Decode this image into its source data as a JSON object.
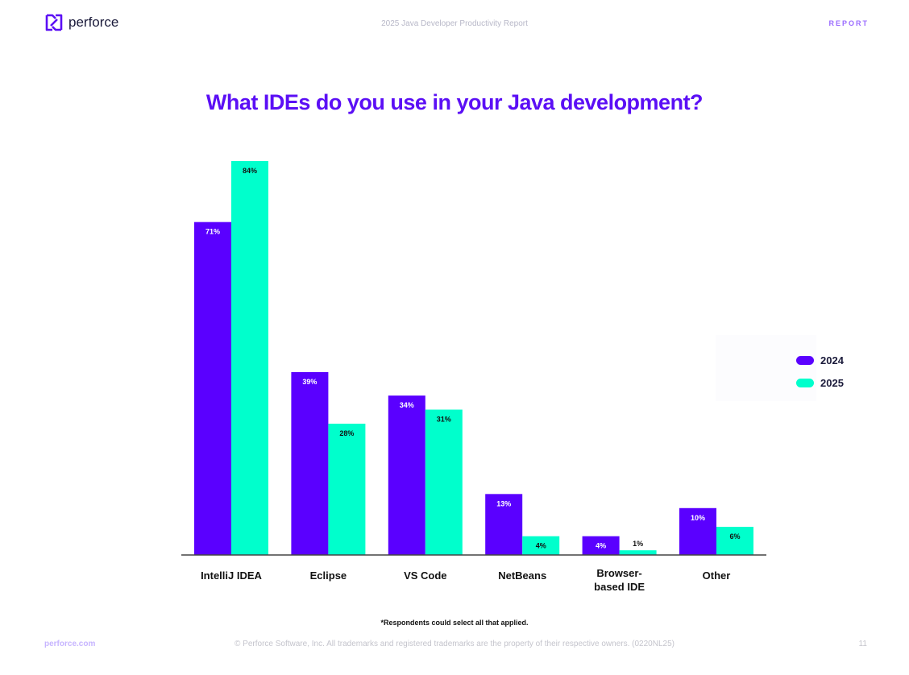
{
  "header": {
    "brand": "perforce",
    "doc_title": "2025 Java Developer Productivity Report",
    "section": "REPORT"
  },
  "colors": {
    "2024": "#5a00ff",
    "2025": "#00ffcc",
    "accent": "#5b0ff5"
  },
  "chart_data": {
    "type": "bar",
    "title": "What IDEs do you use in your Java development?",
    "categories": [
      "IntelliJ IDEA",
      "Eclipse",
      "VS Code",
      "NetBeans",
      "Browser-\nbased IDE",
      "Other"
    ],
    "series": [
      {
        "name": "2024",
        "values": [
          71,
          39,
          34,
          13,
          4,
          10
        ]
      },
      {
        "name": "2025",
        "values": [
          84,
          28,
          31,
          4,
          1,
          6
        ]
      }
    ],
    "ylim": [
      0,
      84
    ],
    "unit": "%",
    "grid": false,
    "legend": "right",
    "xlabel": "",
    "ylabel": ""
  },
  "note": "*Respondents could select all that applied.",
  "footer": {
    "site": "perforce.com",
    "copyright": "© Perforce Software, Inc. All trademarks and registered trademarks are the property of their respective owners. (0220NL25)",
    "page": "11"
  }
}
